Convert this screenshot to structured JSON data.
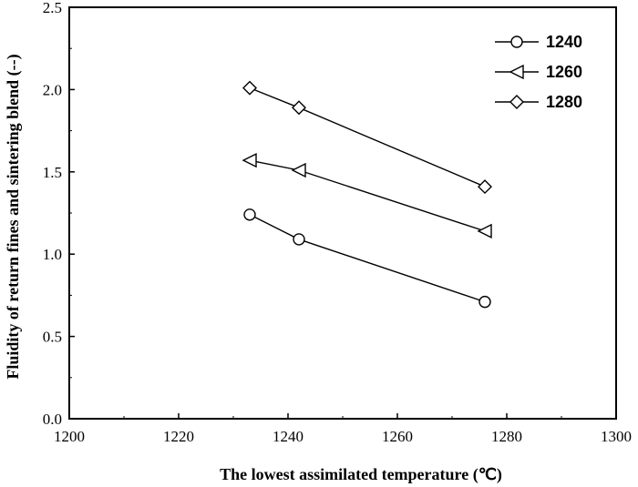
{
  "chart_data": {
    "type": "line",
    "xlabel": "The lowest  assimilated temperature (℃)",
    "ylabel": "Fluidity of return fines and sintering blend (--)",
    "xlim": [
      1200,
      1300
    ],
    "ylim": [
      0.0,
      2.5
    ],
    "xticks": [
      "1200",
      "1220",
      "1240",
      "1260",
      "1280",
      "1300"
    ],
    "yticks": [
      "0.0",
      "0.5",
      "1.0",
      "1.5",
      "2.0",
      "2.5"
    ],
    "grid": false,
    "legend_position": "top-right",
    "series": [
      {
        "name": "1240",
        "marker": "circle",
        "x": [
          1233,
          1242,
          1276
        ],
        "y": [
          1.24,
          1.09,
          0.71
        ]
      },
      {
        "name": "1260",
        "marker": "triangle-left",
        "x": [
          1233,
          1242,
          1276
        ],
        "y": [
          1.57,
          1.51,
          1.14
        ]
      },
      {
        "name": "1280",
        "marker": "diamond",
        "x": [
          1233,
          1242,
          1276
        ],
        "y": [
          2.01,
          1.89,
          1.41
        ]
      }
    ]
  }
}
